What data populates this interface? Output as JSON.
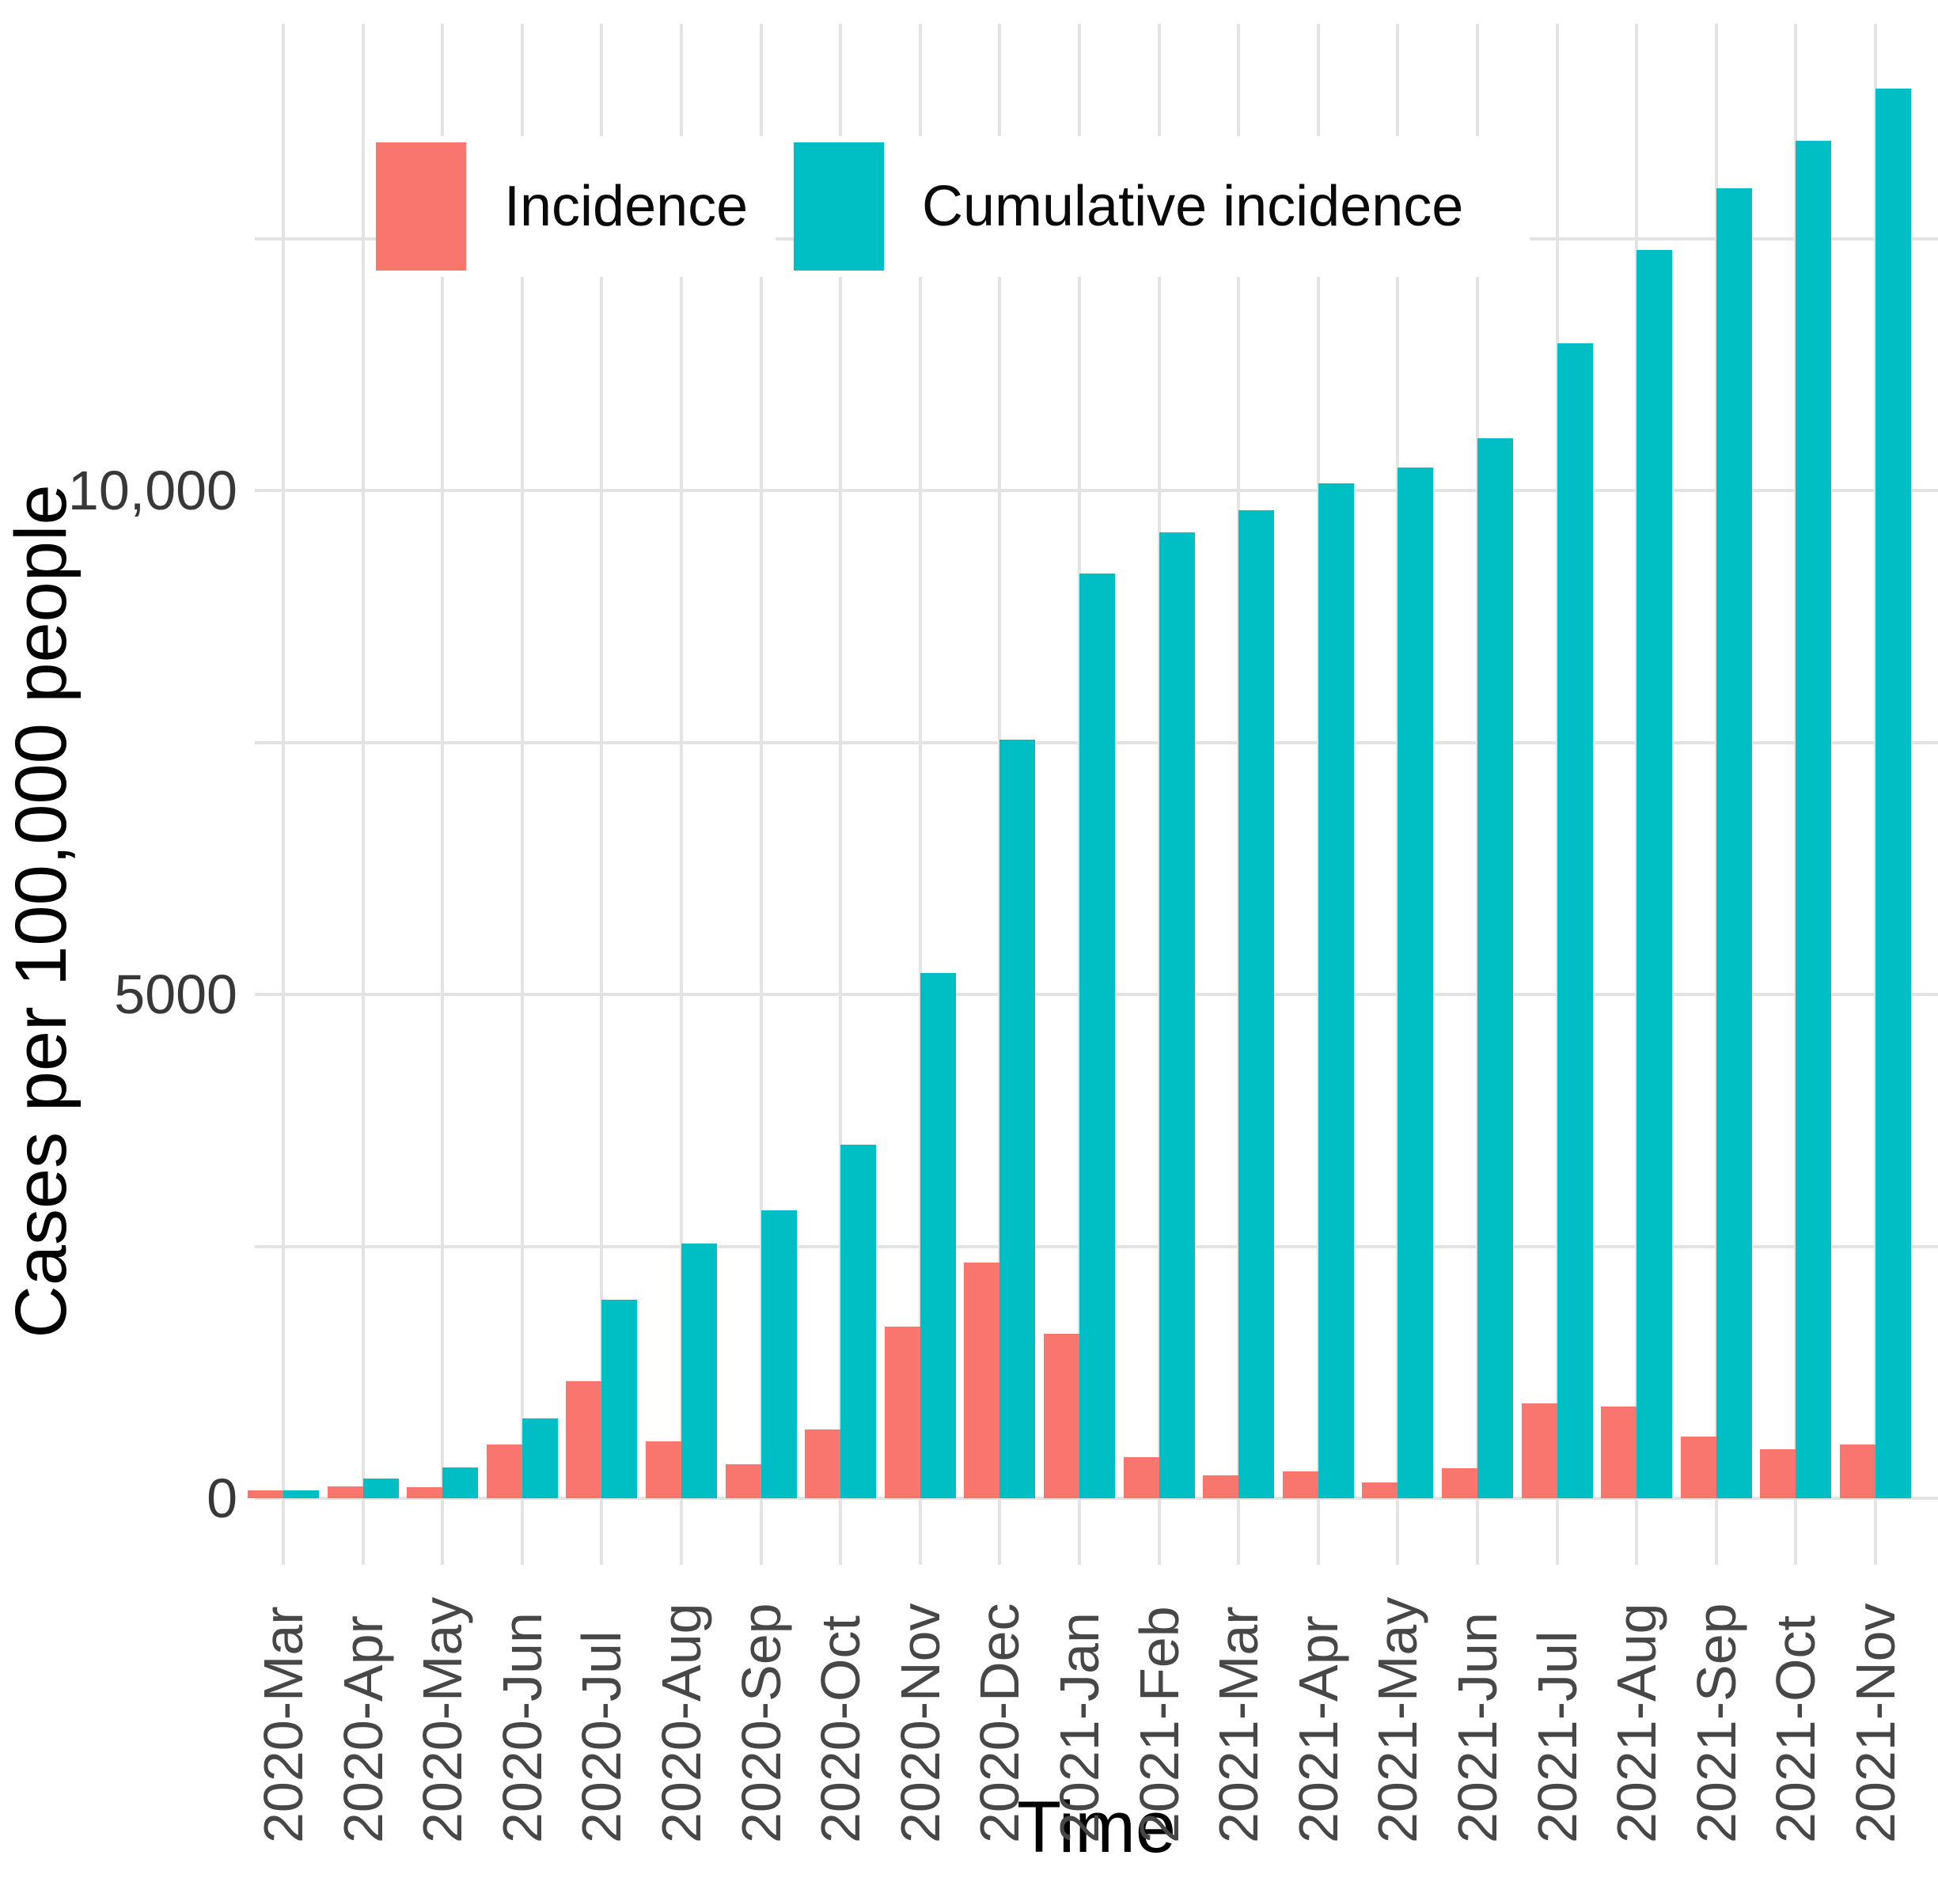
{
  "figure": {
    "y_axis": {
      "title": "Cases per 100,000 people",
      "ticks": [
        {
          "value": 0,
          "label": "0"
        },
        {
          "value": 5000,
          "label": "5000"
        },
        {
          "value": 10000,
          "label": "10,000"
        }
      ],
      "gridline_step": 2500,
      "gridline_max": 12500
    },
    "x_axis": {
      "title": "Time"
    },
    "legend": [
      {
        "label": "Incidence",
        "color": "#F8766D"
      },
      {
        "label": "Cumulative incidence",
        "color": "#00BFC4"
      }
    ],
    "colors": {
      "incidence": "#F8766D",
      "cumulative_incidence": "#00BFC4",
      "gridline": "#e3e3e3",
      "tick_text": "#383838",
      "title_text": "#000000",
      "background": "#ffffff"
    }
  },
  "chart_data": {
    "type": "bar",
    "title": "",
    "xlabel": "Time",
    "ylabel": "Cases per 100,000 people",
    "ylim": [
      0,
      14600
    ],
    "grid": true,
    "legend_position": "top-inside",
    "categories": [
      "2020-Mar",
      "2020-Apr",
      "2020-May",
      "2020-Jun",
      "2020-Jul",
      "2020-Aug",
      "2020-Sep",
      "2020-Oct",
      "2020-Nov",
      "2020-Dec",
      "2021-Jan",
      "2021-Feb",
      "2021-Mar",
      "2021-Apr",
      "2021-May",
      "2021-Jun",
      "2021-Jul",
      "2021-Aug",
      "2021-Sep",
      "2021-Oct",
      "2021-Nov"
    ],
    "series": [
      {
        "name": "Incidence",
        "color": "#F8766D",
        "values": [
          80,
          115,
          110,
          535,
          1160,
          565,
          340,
          680,
          1700,
          2340,
          1630,
          410,
          225,
          270,
          155,
          300,
          945,
          910,
          610,
          490,
          535
        ]
      },
      {
        "name": "Cumulative incidence",
        "color": "#00BFC4",
        "values": [
          75,
          195,
          310,
          790,
          1970,
          2530,
          2860,
          3510,
          5210,
          7530,
          9175,
          9585,
          9805,
          10075,
          10230,
          10520,
          11460,
          12390,
          13000,
          13470,
          13990
        ]
      }
    ]
  }
}
